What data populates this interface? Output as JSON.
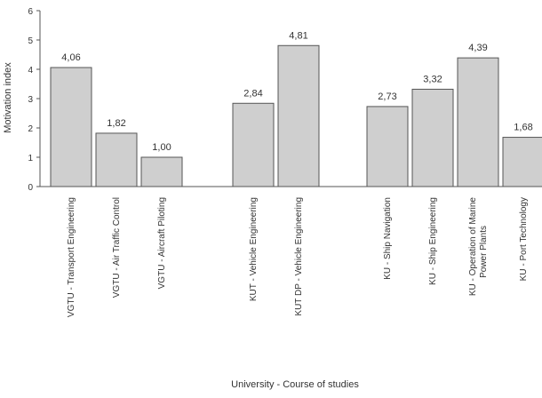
{
  "chart_data": {
    "type": "bar",
    "title": "",
    "xlabel": "University - Course of studies",
    "ylabel": "Motivation index",
    "ylim": [
      0,
      6
    ],
    "yticks": [
      "0",
      "1",
      "2",
      "3",
      "4",
      "5",
      "6"
    ],
    "grid": false,
    "legend": "none",
    "bar_color": "#cfcfcf",
    "groups": [
      {
        "categories": [
          "VGTU - Transport Engineering",
          "VGTU - Air Traffic Control",
          "VGTU - Aircraft Piloting"
        ],
        "values": [
          4.06,
          1.82,
          1.0
        ],
        "labels": [
          "4,06",
          "1,82",
          "1,00"
        ]
      },
      {
        "categories": [
          "KUT - Vehicle Engineering",
          "KUT DP - Vehicle Engineering"
        ],
        "values": [
          2.84,
          4.81
        ],
        "labels": [
          "2,84",
          "4,81"
        ]
      },
      {
        "categories": [
          "KU - Ship Navigation",
          "KU - Ship Engineering",
          "KU - Operation of Marine Power Plants",
          "KU - Port Technology"
        ],
        "values": [
          2.73,
          3.32,
          4.39,
          1.68
        ],
        "labels": [
          "2,73",
          "3,32",
          "4,39",
          "1,68"
        ]
      }
    ]
  }
}
